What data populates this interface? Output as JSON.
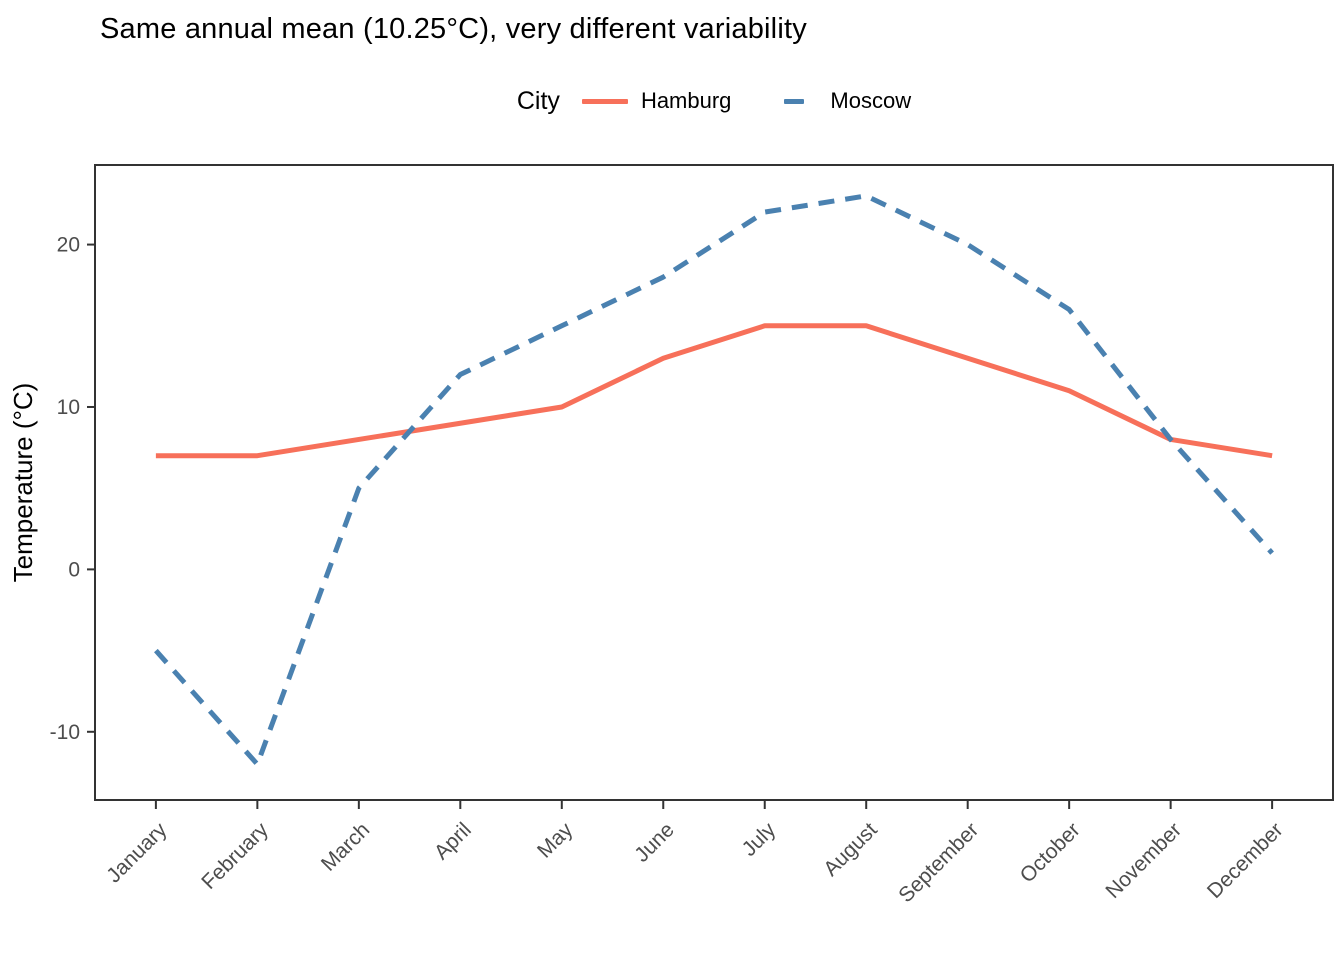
{
  "title": "Same annual mean (10.25°C), very different variability",
  "legend": {
    "title": "City",
    "items": [
      {
        "label": "Hamburg",
        "color": "#F7705A",
        "style": "solid"
      },
      {
        "label": "Moscow",
        "color": "#4A81B0",
        "style": "dashed"
      }
    ]
  },
  "axes": {
    "ylabel": "Temperature (°C)",
    "yticks": [
      20,
      10,
      0,
      -10
    ],
    "tick_label_color": "#4D4D4D",
    "axis_color": "#333333",
    "grid": false
  },
  "chart_data": {
    "type": "line",
    "title": "Same annual mean (10.25°C), very different variability",
    "xlabel": "",
    "ylabel": "Temperature (°C)",
    "categories": [
      "January",
      "February",
      "March",
      "April",
      "May",
      "June",
      "July",
      "August",
      "September",
      "October",
      "November",
      "December"
    ],
    "series": [
      {
        "name": "Hamburg",
        "color": "#F7705A",
        "style": "solid",
        "values": [
          7,
          7,
          8,
          9,
          10,
          13,
          15,
          15,
          13,
          11,
          8,
          7
        ]
      },
      {
        "name": "Moscow",
        "color": "#4A81B0",
        "style": "dashed",
        "values": [
          -5,
          -12,
          5,
          12,
          15,
          18,
          22,
          23,
          20,
          16,
          8,
          1
        ]
      }
    ],
    "annual_mean": 10.25,
    "yticks": [
      20,
      10,
      0,
      -10
    ],
    "ylim": [
      -14.2,
      24.9
    ],
    "grid": false,
    "legend_position": "top",
    "legend_title": "City"
  }
}
